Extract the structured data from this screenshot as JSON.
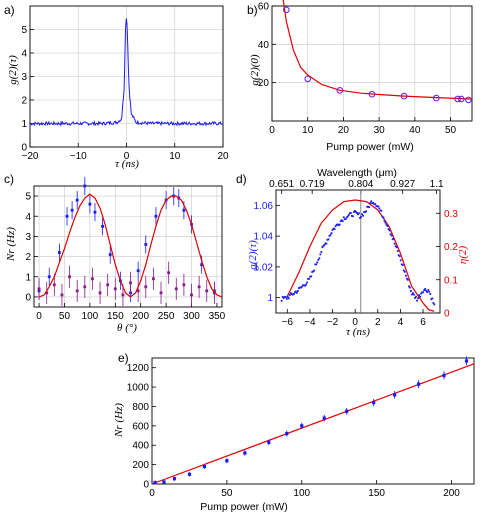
{
  "chart_data": [
    {
      "panel": "a)",
      "type": "line",
      "xlabel": "τ (ns)",
      "ylabel": "g(2)(τ)",
      "xlim": [
        -20,
        20
      ],
      "ylim": [
        0,
        6
      ],
      "xticks": [
        "−20",
        "−10",
        "0",
        "10",
        "20"
      ],
      "yticks": [
        "0",
        "1",
        "2",
        "3",
        "4",
        "5"
      ],
      "grid": true,
      "series": [
        {
          "color": "#1a1aff",
          "x": [
            -20,
            -10,
            -5,
            -2,
            -1,
            -0.5,
            -0.2,
            0,
            0.2,
            0.5,
            1,
            2,
            5,
            10,
            20
          ],
          "y": [
            1.0,
            1.0,
            1.0,
            1.05,
            1.2,
            2.5,
            5.0,
            5.7,
            4.8,
            2.6,
            1.4,
            1.05,
            1.0,
            1.0,
            1.0
          ]
        }
      ]
    },
    {
      "panel": "b)",
      "type": "scatter",
      "xlabel": "Pump power (mW)",
      "ylabel": "g(2)(0)",
      "xlim": [
        0,
        56
      ],
      "ylim": [
        0,
        60
      ],
      "xticks": [
        "0",
        "10",
        "20",
        "30",
        "40",
        "50"
      ],
      "yticks": [
        "20",
        "40",
        "60"
      ],
      "grid": true,
      "points": {
        "x": [
          4,
          10,
          19,
          28,
          37,
          46,
          52,
          53,
          55
        ],
        "y": [
          58,
          22,
          16,
          14,
          13,
          12,
          11.5,
          11.5,
          11
        ]
      },
      "fit": {
        "color": "#e00000",
        "x": [
          3,
          4,
          6,
          8,
          10,
          14,
          19,
          25,
          30,
          37,
          46,
          56
        ],
        "y": [
          65,
          52,
          37,
          28,
          24,
          19,
          16,
          14.5,
          13.8,
          13,
          12.2,
          11.5
        ]
      },
      "marker_color": "#6a2bd9"
    },
    {
      "panel": "c)",
      "type": "scatter",
      "xlabel": "θ (°)",
      "ylabel": "Nr (Hz)",
      "xlim": [
        -10,
        360
      ],
      "ylim": [
        -0.5,
        5.5
      ],
      "xticks": [
        "0",
        "50",
        "100",
        "150",
        "200",
        "250",
        "300",
        "350"
      ],
      "yticks": [
        "0",
        "1",
        "2",
        "3",
        "4",
        "5"
      ],
      "grid": true,
      "series": [
        {
          "color": "#1a1aff",
          "x": [
            0,
            20,
            40,
            55,
            65,
            75,
            90,
            100,
            110,
            125,
            140,
            160,
            180,
            195,
            210,
            230,
            250,
            265,
            275,
            285,
            300,
            320,
            345
          ],
          "y": [
            0.3,
            1.0,
            2.2,
            4.0,
            4.3,
            4.8,
            5.5,
            4.6,
            4.2,
            3.5,
            2.1,
            0.8,
            0.2,
            1.3,
            2.6,
            4.0,
            4.8,
            5.0,
            4.9,
            4.3,
            3.6,
            1.6,
            0.3
          ]
        },
        {
          "color": "#8a1a8a",
          "x": [
            0,
            15,
            30,
            45,
            60,
            75,
            90,
            105,
            120,
            135,
            150,
            165,
            180,
            195,
            210,
            225,
            240,
            255,
            270,
            285,
            300,
            315,
            330,
            345
          ],
          "y": [
            0.4,
            0.2,
            0.6,
            0.1,
            1.0,
            0.3,
            0.5,
            0.9,
            0.2,
            0.6,
            0.4,
            0.1,
            0.7,
            0.3,
            0.5,
            0.9,
            0.2,
            1.2,
            0.4,
            0.6,
            0.1,
            0.5,
            0.3,
            0.2
          ]
        }
      ],
      "fit": {
        "color": "#e00000",
        "x": [
          0,
          10,
          20,
          30,
          40,
          50,
          60,
          70,
          80,
          90,
          100,
          110,
          120,
          130,
          140,
          150,
          160,
          170,
          180,
          190,
          200,
          210,
          220,
          230,
          240,
          250,
          260,
          270,
          280,
          290,
          300,
          310,
          320,
          330,
          340,
          350,
          360
        ],
        "y": [
          0.0,
          0.1,
          0.5,
          1.0,
          1.7,
          2.4,
          3.2,
          3.9,
          4.5,
          4.9,
          5.1,
          4.9,
          4.4,
          3.6,
          2.6,
          1.6,
          0.8,
          0.2,
          0.0,
          0.2,
          0.8,
          1.6,
          2.6,
          3.5,
          4.3,
          4.8,
          5.0,
          5.0,
          4.8,
          4.3,
          3.6,
          2.7,
          1.8,
          1.0,
          0.4,
          0.1,
          0.0
        ]
      }
    },
    {
      "panel": "d)",
      "type": "line",
      "xlabel": "τ (ns)",
      "ylabel_left": "g(2)(τ)",
      "ylabel_right": "η(2)",
      "top_label": "Wavelength (μm)",
      "top_ticks": [
        "0.651",
        "0.719",
        "0.804",
        "0.927",
        "1.1"
      ],
      "xlim": [
        -7,
        7.5
      ],
      "ylim_left": [
        0.99,
        1.07
      ],
      "ylim_right": [
        0,
        0.37
      ],
      "xticks": [
        "−6",
        "−4",
        "−2",
        "0",
        "2",
        "4",
        "6"
      ],
      "yticks_left": [
        "1",
        "1.02",
        "1.04",
        "1.06"
      ],
      "yticks_right": [
        "0",
        "0.1",
        "0.2",
        "0.3"
      ],
      "left_color": "#1a1aff",
      "right_color": "#e00000",
      "series": [
        {
          "axis": "left",
          "color": "#1a1aff",
          "x": [
            -6.5,
            -6,
            -5,
            -4,
            -3,
            -2,
            -1,
            0,
            0.5,
            1,
            1.5,
            2,
            3,
            4,
            5,
            5.5,
            6,
            6.5,
            7
          ],
          "y": [
            0.999,
            1.0,
            1.005,
            1.012,
            1.03,
            1.044,
            1.052,
            1.055,
            1.053,
            1.057,
            1.063,
            1.06,
            1.045,
            1.025,
            1.003,
            0.999,
            1.005,
            1.005,
            0.995
          ]
        },
        {
          "axis": "right",
          "color": "#e00000",
          "x": [
            -6,
            -5,
            -4,
            -3,
            -2,
            -1,
            0,
            1,
            2,
            3,
            4,
            5,
            6,
            6.5,
            7
          ],
          "y": [
            0.05,
            0.12,
            0.2,
            0.27,
            0.31,
            0.335,
            0.34,
            0.335,
            0.31,
            0.26,
            0.18,
            0.08,
            0.03,
            0.01,
            0.005
          ]
        }
      ],
      "vline_x": 0.5
    },
    {
      "panel": "e)",
      "type": "scatter",
      "xlabel": "Pump power (mW)",
      "ylabel": "Nr (Hz)",
      "xlim": [
        0,
        215
      ],
      "ylim": [
        0,
        1300
      ],
      "xticks": [
        "0",
        "50",
        "100",
        "150",
        "200"
      ],
      "yticks": [
        "0",
        "200",
        "400",
        "600",
        "800",
        "1000",
        "1200"
      ],
      "grid": false,
      "points": {
        "x": [
          2,
          8,
          15,
          25,
          35,
          50,
          62,
          78,
          90,
          100,
          115,
          130,
          148,
          162,
          178,
          195,
          210
        ],
        "y": [
          15,
          20,
          55,
          100,
          180,
          240,
          320,
          430,
          520,
          600,
          680,
          750,
          840,
          920,
          1030,
          1120,
          1270
        ]
      },
      "fit": {
        "color": "#e00000",
        "x": [
          0,
          215
        ],
        "y": [
          0,
          1240
        ]
      },
      "marker_color": "#1a1aff"
    }
  ]
}
